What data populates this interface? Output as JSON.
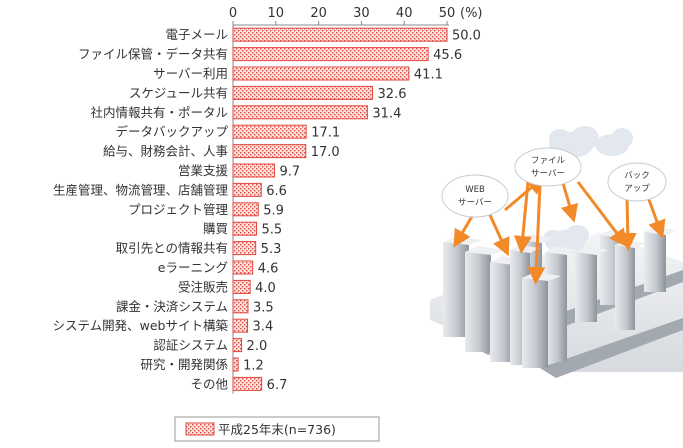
{
  "chart_data": {
    "type": "bar",
    "orientation": "horizontal",
    "unit_label": "(%)",
    "xlim": [
      0,
      50
    ],
    "ticks": [
      "0",
      "10",
      "20",
      "30",
      "40",
      "50"
    ],
    "categories": [
      "電子メール",
      "ファイル保管・データ共有",
      "サーバー利用",
      "スケジュール共有",
      "社内情報共有・ポータル",
      "データバックアップ",
      "給与、財務会計、人事",
      "営業支援",
      "生産管理、物流管理、店舗管理",
      "プロジェクト管理",
      "購買",
      "取引先との情報共有",
      "eラーニング",
      "受注販売",
      "課金・決済システム",
      "システム開発、webサイト構築",
      "認証システム",
      "研究・開発関係",
      "その他"
    ],
    "series": [
      {
        "name": "平成25年末(n=736)",
        "values": [
          50.0,
          45.6,
          41.1,
          32.6,
          31.4,
          17.1,
          17.0,
          9.7,
          6.6,
          5.9,
          5.5,
          5.3,
          4.6,
          4.0,
          3.5,
          3.4,
          2.0,
          1.2,
          6.7
        ],
        "value_labels": [
          "50.0",
          "45.6",
          "41.1",
          "32.6",
          "31.4",
          "17.1",
          "17.0",
          "9.7",
          "6.6",
          "5.9",
          "5.5",
          "5.3",
          "4.6",
          "4.0",
          "3.5",
          "3.4",
          "2.0",
          "1.2",
          "6.7"
        ]
      }
    ],
    "legend_position": "bottom-left",
    "colors": {
      "bar_fill": "#f9d6d2",
      "bar_border": "#e2473e",
      "axis": "#888888"
    }
  },
  "illustration": {
    "labels": {
      "web_server": [
        "WEB",
        "サーバー"
      ],
      "file_server": [
        "ファイル",
        "サーバー"
      ],
      "backup": [
        "バック",
        "アップ"
      ]
    },
    "colors": {
      "arrow": "#f28a2a",
      "building": "#c9ccd1",
      "road": "#9aa0a8"
    }
  }
}
